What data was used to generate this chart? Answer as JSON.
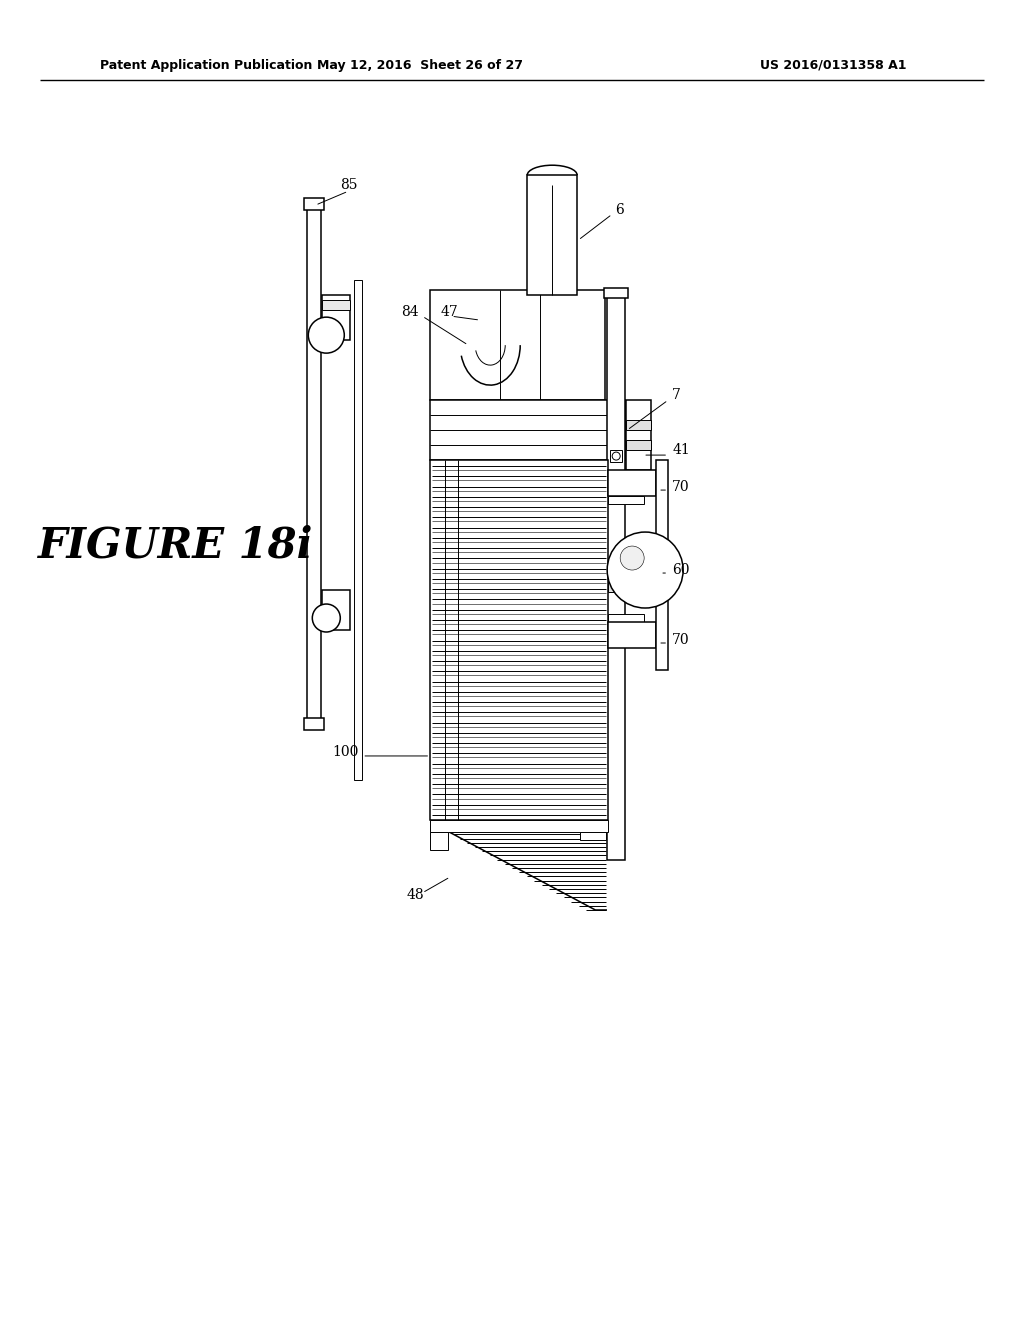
{
  "header_left": "Patent Application Publication",
  "header_middle": "May 12, 2016  Sheet 26 of 27",
  "header_right": "US 2016/0131358 A1",
  "figure_label": "FIGURE 18i",
  "bg_color": "#ffffff",
  "lw_thin": 0.7,
  "lw_med": 1.1,
  "lw_thick": 1.6,
  "label_fontsize": 10,
  "fig_label_fontsize": 30
}
